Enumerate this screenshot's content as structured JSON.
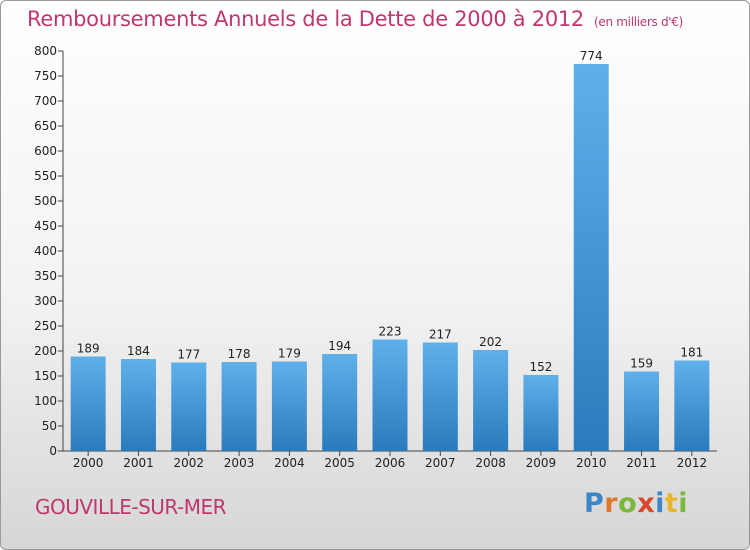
{
  "header": {
    "title": "Remboursements Annuels de la Dette de 2000 à 2012",
    "subtitle": "(en milliers d'€)"
  },
  "footer": {
    "location": "GOUVILLE-SUR-MER",
    "logo_text": "Proxiti"
  },
  "colors": {
    "accent": "#c0376f",
    "bar_top": "#5fb0ea",
    "bar_bottom": "#2a7bbd"
  },
  "chart_data": {
    "type": "bar",
    "title": "Remboursements Annuels de la Dette de 2000 à 2012",
    "subtitle": "(en milliers d'€)",
    "xlabel": "",
    "ylabel": "",
    "categories": [
      "2000",
      "2001",
      "2002",
      "2003",
      "2004",
      "2005",
      "2006",
      "2007",
      "2008",
      "2009",
      "2010",
      "2011",
      "2012"
    ],
    "values": [
      189,
      184,
      177,
      178,
      179,
      194,
      223,
      217,
      202,
      152,
      774,
      159,
      181
    ],
    "ylim": [
      0,
      800
    ],
    "yticks": [
      0,
      50,
      100,
      150,
      200,
      250,
      300,
      350,
      400,
      450,
      500,
      550,
      600,
      650,
      700,
      750,
      800
    ],
    "grid": false,
    "data_labels": true,
    "legend": "none"
  }
}
